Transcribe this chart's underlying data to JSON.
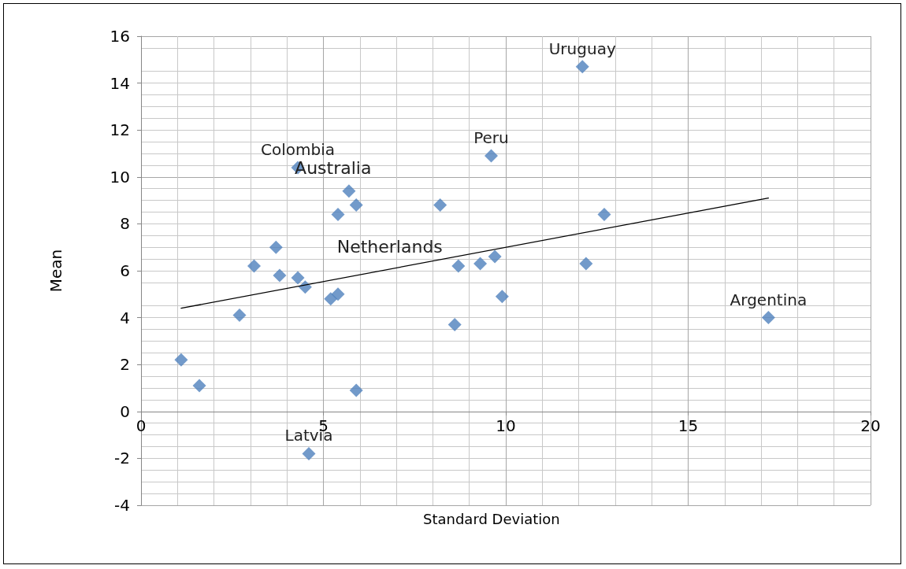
{
  "chart_data": {
    "type": "scatter",
    "xlabel": "Standard Deviation",
    "ylabel": "Mean",
    "xlim": [
      0,
      20
    ],
    "xticks": [
      0,
      5,
      10,
      15,
      20
    ],
    "ylim": [
      -4,
      16
    ],
    "yticks": [
      -4,
      -2,
      0,
      2,
      4,
      6,
      8,
      10,
      12,
      14,
      16
    ],
    "grid": true,
    "marker": "diamond",
    "series": [
      {
        "type": "scatter",
        "color": "#4f81bd",
        "x": [
          1.1,
          1.6,
          2.7,
          3.1,
          3.7,
          3.8,
          4.3,
          4.5,
          4.3,
          4.6,
          5.2,
          5.4,
          5.4,
          5.7,
          5.9,
          5.9,
          8.2,
          8.6,
          8.7,
          9.3,
          9.6,
          9.7,
          9.9,
          12.1,
          12.2,
          12.7,
          17.2
        ],
        "values": [
          2.2,
          1.1,
          4.1,
          6.2,
          7.0,
          5.8,
          5.7,
          5.3,
          10.4,
          -1.8,
          4.8,
          5.0,
          8.4,
          9.4,
          8.8,
          0.9,
          8.8,
          3.7,
          6.2,
          6.3,
          10.9,
          6.6,
          4.9,
          14.7,
          6.3,
          8.4,
          4.0
        ]
      },
      {
        "type": "line",
        "color": "#000000",
        "marker": "none",
        "line_style": "solid",
        "x": [
          1.1,
          17.2
        ],
        "values": [
          4.4,
          9.1
        ]
      }
    ],
    "annotations": [
      {
        "text": "Uruguay",
        "x": 12.1,
        "y": 14.7
      },
      {
        "text": "Peru",
        "x": 9.6,
        "y": 10.9
      },
      {
        "text": "Colombia",
        "x": 4.3,
        "y": 10.4
      },
      {
        "text": "Australia",
        "x": 4.3,
        "y": 10.4
      },
      {
        "text": "Netherlands",
        "x": 8.7,
        "y": 6.2
      },
      {
        "text": "Argentina",
        "x": 17.2,
        "y": 4.0
      },
      {
        "text": "Latvia",
        "x": 4.6,
        "y": -1.8
      }
    ]
  }
}
